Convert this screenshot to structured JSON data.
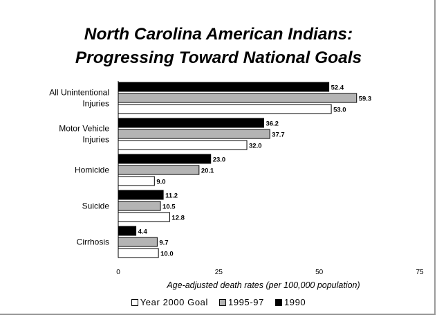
{
  "chart_data": {
    "type": "bar",
    "orientation": "horizontal",
    "title": "North Carolina American Indians:",
    "subtitle": "Progressing Toward National Goals",
    "xlabel": "Age-adjusted death rates (per 100,000 population)",
    "ylabel": "",
    "xlim": [
      0,
      75
    ],
    "xticks": [
      "0",
      "25",
      "50",
      "75"
    ],
    "grid": false,
    "legend_position": "bottom",
    "categories": [
      [
        "All Unintentional",
        "Injuries"
      ],
      [
        "Motor Vehicle",
        "Injuries"
      ],
      [
        "Homicide"
      ],
      [
        "Suicide"
      ],
      [
        "Cirrhosis"
      ]
    ],
    "series": [
      {
        "name": "1990",
        "color": "#000000",
        "values": [
          52.4,
          36.2,
          23.0,
          11.2,
          4.4
        ],
        "labels": [
          "52.4",
          "36.2",
          "23.0",
          "11.2",
          "4.4"
        ]
      },
      {
        "name": "1995-97",
        "color": "#b4b4b4",
        "values": [
          59.3,
          37.7,
          20.1,
          10.5,
          9.7
        ],
        "labels": [
          "59.3",
          "37.7",
          "20.1",
          "10.5",
          "9.7"
        ]
      },
      {
        "name": "Year 2000 Goal",
        "color": "#ffffff",
        "values": [
          53.0,
          32.0,
          9.0,
          12.8,
          10.0
        ],
        "labels": [
          "53.0",
          "32.0",
          "9.0",
          "12.8",
          "10.0"
        ]
      }
    ],
    "legend_order": [
      "Year 2000 Goal",
      "1995-97",
      "1990"
    ]
  }
}
